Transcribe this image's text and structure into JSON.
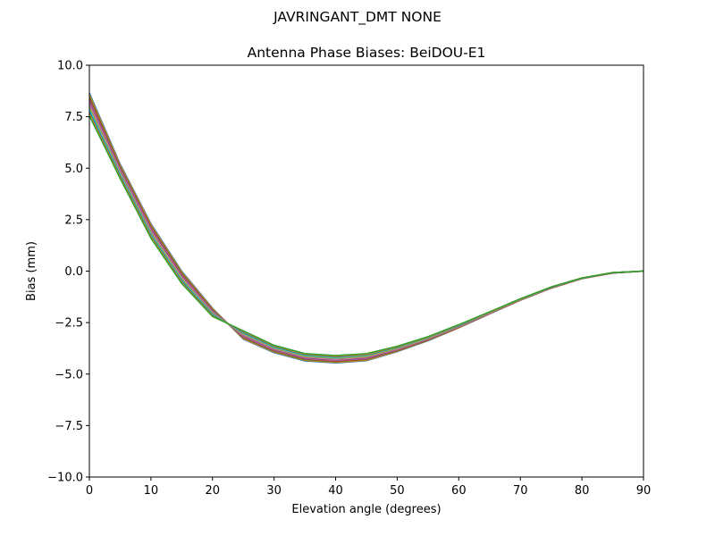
{
  "suptitle": "JAVRINGANT_DMT  NONE",
  "chart_data": {
    "type": "line",
    "title": "Antenna Phase Biases: BeiDOU-E1",
    "xlabel": "Elevation angle (degrees)",
    "ylabel": "Bias (mm)",
    "xlim": [
      0,
      90
    ],
    "ylim": [
      -10,
      10
    ],
    "xticks": [
      0,
      10,
      20,
      30,
      40,
      50,
      60,
      70,
      80,
      90
    ],
    "yticks": [
      -10.0,
      -7.5,
      -5.0,
      -2.5,
      0.0,
      2.5,
      5.0,
      7.5,
      10.0
    ],
    "ytick_labels": [
      "−10.0",
      "−7.5",
      "−5.0",
      "−2.5",
      "0.0",
      "2.5",
      "5.0",
      "7.5",
      "10.0"
    ],
    "grid": false,
    "x": [
      0,
      5,
      10,
      15,
      20,
      25,
      30,
      35,
      40,
      45,
      50,
      55,
      60,
      65,
      70,
      75,
      80,
      85,
      90
    ],
    "colors": [
      "#1f77b4",
      "#ff7f0e",
      "#2ca02c",
      "#d62728",
      "#9467bd",
      "#8c564b",
      "#e377c2",
      "#7f7f7f",
      "#bcbd22",
      "#17becf"
    ],
    "series": [
      {
        "values": [
          8.65,
          5.2,
          2.3,
          0.0,
          -1.8,
          -3.3,
          -3.96,
          -4.36,
          -4.46,
          -4.35,
          -3.91,
          -3.38,
          -2.76,
          -2.08,
          -1.42,
          -0.83,
          -0.37,
          -0.09,
          0
        ]
      },
      {
        "values": [
          8.56,
          5.14,
          2.24,
          -0.05,
          -1.83,
          -3.27,
          -3.93,
          -4.33,
          -4.43,
          -4.32,
          -3.89,
          -3.36,
          -2.75,
          -2.07,
          -1.41,
          -0.83,
          -0.37,
          -0.09,
          0
        ]
      },
      {
        "values": [
          8.47,
          5.08,
          2.18,
          -0.1,
          -1.87,
          -3.23,
          -3.9,
          -4.3,
          -4.4,
          -4.29,
          -3.87,
          -3.35,
          -2.73,
          -2.06,
          -1.41,
          -0.82,
          -0.36,
          -0.09,
          0
        ]
      },
      {
        "values": [
          8.38,
          5.03,
          2.13,
          -0.15,
          -1.9,
          -3.2,
          -3.87,
          -4.27,
          -4.37,
          -4.27,
          -3.85,
          -3.33,
          -2.72,
          -2.06,
          -1.4,
          -0.82,
          -0.36,
          -0.09,
          0
        ]
      },
      {
        "values": [
          8.28,
          4.97,
          2.07,
          -0.2,
          -1.93,
          -3.17,
          -3.84,
          -4.24,
          -4.34,
          -4.24,
          -3.82,
          -3.31,
          -2.71,
          -2.05,
          -1.39,
          -0.81,
          -0.36,
          -0.09,
          0
        ]
      },
      {
        "values": [
          8.19,
          4.91,
          2.01,
          -0.25,
          -1.97,
          -3.13,
          -3.81,
          -4.21,
          -4.31,
          -4.21,
          -3.8,
          -3.3,
          -2.69,
          -2.04,
          -1.39,
          -0.81,
          -0.35,
          -0.09,
          0
        ]
      },
      {
        "values": [
          8.1,
          4.85,
          1.95,
          -0.3,
          -2.0,
          -3.1,
          -3.78,
          -4.18,
          -4.28,
          -4.18,
          -3.78,
          -3.28,
          -2.68,
          -2.03,
          -1.38,
          -0.8,
          -0.35,
          -0.08,
          0
        ]
      },
      {
        "values": [
          8.01,
          4.79,
          1.89,
          -0.35,
          -2.03,
          -3.07,
          -3.75,
          -4.15,
          -4.25,
          -4.15,
          -3.76,
          -3.26,
          -2.67,
          -2.02,
          -1.37,
          -0.79,
          -0.35,
          -0.07,
          0
        ]
      },
      {
        "values": [
          7.92,
          4.73,
          1.83,
          -0.4,
          -2.07,
          -3.03,
          -3.72,
          -4.12,
          -4.22,
          -4.12,
          -3.74,
          -3.25,
          -2.65,
          -2.01,
          -1.37,
          -0.79,
          -0.34,
          -0.07,
          0
        ]
      },
      {
        "values": [
          7.83,
          4.68,
          1.78,
          -0.45,
          -2.1,
          -3.0,
          -3.69,
          -4.09,
          -4.19,
          -4.09,
          -3.71,
          -3.23,
          -2.64,
          -2.0,
          -1.36,
          -0.78,
          -0.34,
          -0.07,
          0
        ]
      },
      {
        "values": [
          7.73,
          4.62,
          1.72,
          -0.5,
          -2.13,
          -2.97,
          -3.66,
          -4.06,
          -4.16,
          -4.07,
          -3.69,
          -3.21,
          -2.63,
          -2.0,
          -1.35,
          -0.78,
          -0.34,
          -0.07,
          0
        ]
      },
      {
        "values": [
          7.64,
          4.56,
          1.66,
          -0.55,
          -2.17,
          -2.93,
          -3.63,
          -4.03,
          -4.13,
          -4.04,
          -3.67,
          -3.2,
          -2.61,
          -1.99,
          -1.35,
          -0.77,
          -0.33,
          -0.07,
          0
        ]
      },
      {
        "values": [
          7.55,
          4.5,
          1.6,
          -0.6,
          -2.2,
          -2.9,
          -3.6,
          -4.0,
          -4.1,
          -4.01,
          -3.65,
          -3.18,
          -2.6,
          -1.98,
          -1.34,
          -0.77,
          -0.33,
          -0.07,
          0
        ]
      }
    ]
  }
}
